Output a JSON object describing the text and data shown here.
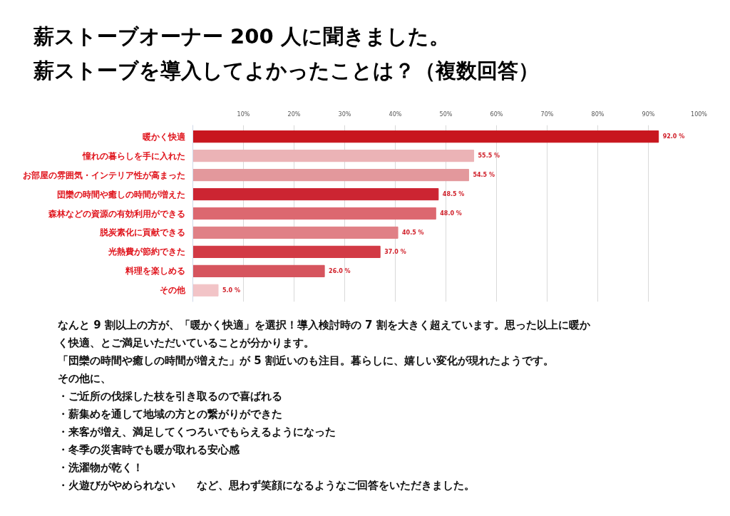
{
  "chart_data": {
    "type": "bar",
    "orientation": "horizontal",
    "title": "薪ストーブオーナー 200 人に聞きました。",
    "subtitle": "薪ストーブを導入してよかったことは？（複数回答）",
    "categories": [
      "暖かく快適",
      "憧れの暮らしを手に入れた",
      "お部屋の雰囲気・インテリア性が高まった",
      "団欒の時間や癒しの時間が増えた",
      "森林などの資源の有効利用ができる",
      "脱炭素化に貢献できる",
      "光熱費が節約できた",
      "料理を楽しめる",
      "その他"
    ],
    "values": [
      92.0,
      55.5,
      54.5,
      48.5,
      48.0,
      40.5,
      37.0,
      26.0,
      5.0
    ],
    "colors": [
      "#c8161e",
      "#ebb3b6",
      "#e3989c",
      "#cc2532",
      "#dc6870",
      "#e08086",
      "#d23a45",
      "#d6555e",
      "#f2c4c7"
    ],
    "value_labels": [
      "92.0 %",
      "55.5 %",
      "54.5 %",
      "48.5 %",
      "48.0 %",
      "40.5 %",
      "37.0 %",
      "26.0 %",
      "5.0 %"
    ],
    "xlim": [
      0,
      100
    ],
    "xticks": [
      {
        "value": 10,
        "label": "10%"
      },
      {
        "value": 20,
        "label": "20%"
      },
      {
        "value": 30,
        "label": "30%"
      },
      {
        "value": 40,
        "label": "40%"
      },
      {
        "value": 50,
        "label": "50%"
      },
      {
        "value": 60,
        "label": "60%"
      },
      {
        "value": 70,
        "label": "70%"
      },
      {
        "value": 80,
        "label": "80%"
      },
      {
        "value": 90,
        "label": "90%"
      },
      {
        "value": 100,
        "label": "100%"
      }
    ],
    "grid": "x",
    "annotations": [
      "なんと 9 割以上の方が、「暖かく快適」を選択！導入検討時の 7 割を大きく超えています。思った以上に暖か",
      "く快適、とご満足いただいていることが分かります。",
      "「団欒の時間や癒しの時間が増えた」が 5 割近いのも注目。暮らしに、嬉しい変化が現れたようです。",
      "その他に、",
      "・ご近所の伐採した枝を引き取るので喜ばれる",
      "・薪集めを通して地域の方との繋がりができた",
      "・来客が増え、満足してくつろいでもらえるようになった",
      "・冬季の災害時でも暖が取れる安心感",
      "・洗濯物が乾く！",
      "・火遊びがやめられない　　など、思わず笑顔になるようなご回答をいただきました。"
    ]
  }
}
